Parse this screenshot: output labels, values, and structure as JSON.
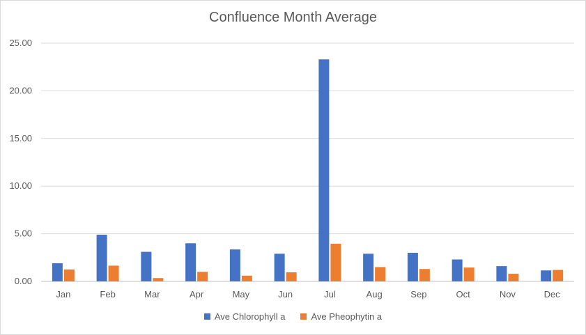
{
  "chart_data": {
    "type": "bar",
    "title": "Confluence Month Average",
    "xlabel": "",
    "ylabel": "",
    "ylim": [
      0,
      25
    ],
    "yticks": [
      "0.00",
      "5.00",
      "10.00",
      "15.00",
      "20.00",
      "25.00"
    ],
    "categories": [
      "Jan",
      "Feb",
      "Mar",
      "Apr",
      "May",
      "Jun",
      "Jul",
      "Aug",
      "Sep",
      "Oct",
      "Nov",
      "Dec"
    ],
    "series": [
      {
        "name": "Ave Chlorophyll a",
        "color": "#4472c4",
        "values": [
          1.9,
          4.9,
          3.1,
          4.0,
          3.35,
          2.9,
          23.3,
          2.9,
          3.0,
          2.3,
          1.6,
          1.15
        ]
      },
      {
        "name": "Ave Pheophytin a",
        "color": "#ed7d31",
        "values": [
          1.25,
          1.65,
          0.35,
          1.0,
          0.6,
          0.95,
          3.95,
          1.5,
          1.3,
          1.45,
          0.8,
          1.2
        ]
      }
    ],
    "grid": true,
    "legend": "bottom"
  }
}
